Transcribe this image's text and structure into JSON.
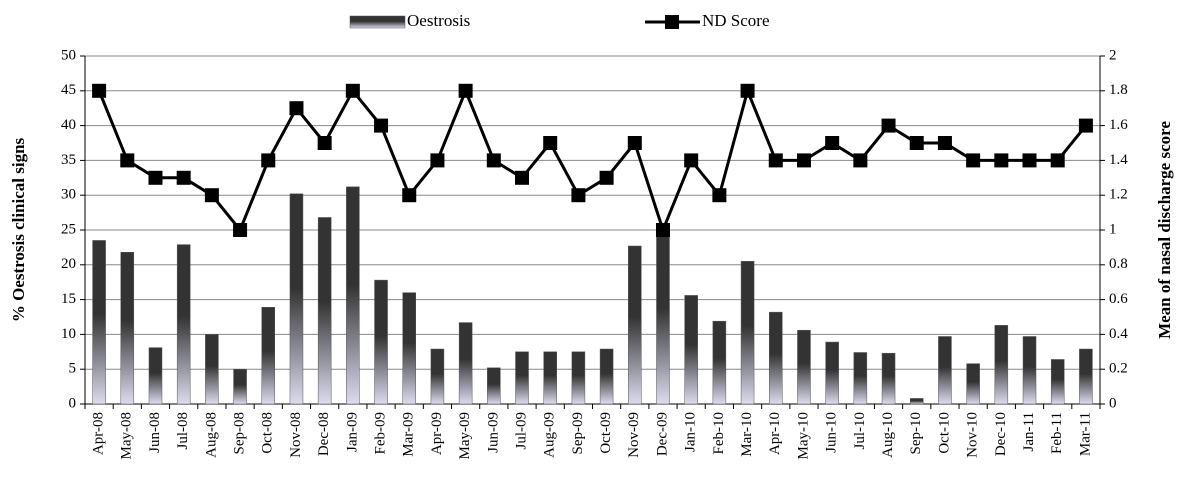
{
  "chart_data": {
    "type": "bar-line",
    "y_label": "% Oestrosis clinical signs",
    "y2_label": "Mean of nasal discharge score",
    "categories": [
      "Apr-08",
      "May-08",
      "Jun-08",
      "Jul-08",
      "Aug-08",
      "Sep-08",
      "Oct-08",
      "Nov-08",
      "Dec-08",
      "Jan-09",
      "Feb-09",
      "Mar-09",
      "Apr-09",
      "May-09",
      "Jun-09",
      "Jul-09",
      "Aug-09",
      "Sep-09",
      "Oct-09",
      "Nov-09",
      "Dec-09",
      "Jan-10",
      "Feb-10",
      "Mar-10",
      "Apr-10",
      "May-10",
      "Jun-10",
      "Jul-10",
      "Aug-10",
      "Sep-10",
      "Oct-10",
      "Nov-10",
      "Dec-10",
      "Jan-11",
      "Feb-11",
      "Mar-11"
    ],
    "series": [
      {
        "name": "Oestrosis",
        "type": "bar",
        "color": "#333333",
        "values": [
          23.5,
          21.8,
          8.1,
          22.9,
          10,
          5,
          13.9,
          30.2,
          26.8,
          31.2,
          17.8,
          16,
          7.9,
          11.7,
          5.2,
          7.5,
          7.5,
          7.5,
          7.9,
          22.7,
          25,
          15.6,
          11.9,
          20.5,
          13.2,
          10.6,
          8.9,
          7.4,
          7.3,
          0.8,
          9.7,
          5.8,
          11.3,
          9.7,
          6.4,
          7.9
        ]
      },
      {
        "name": "ND Score",
        "type": "line",
        "axis": "y2",
        "color": "#000000",
        "values": [
          1.8,
          1.4,
          1.3,
          1.3,
          1.2,
          1.0,
          1.4,
          1.7,
          1.5,
          1.8,
          1.6,
          1.2,
          1.4,
          1.8,
          1.4,
          1.3,
          1.5,
          1.2,
          1.3,
          1.5,
          1.0,
          1.4,
          1.2,
          1.8,
          1.4,
          1.4,
          1.5,
          1.4,
          1.6,
          1.5,
          1.5,
          1.4,
          1.4,
          1.4,
          1.4,
          1.6
        ]
      }
    ],
    "ylim": [
      0,
      50
    ],
    "yticks": [
      0,
      5,
      10,
      15,
      20,
      25,
      30,
      35,
      40,
      45,
      50
    ],
    "y2lim": [
      0,
      2
    ],
    "y2ticks": [
      0,
      0.2,
      0.4,
      0.6,
      0.8,
      1,
      1.2,
      1.4,
      1.6,
      1.8,
      2
    ],
    "grid": true
  }
}
